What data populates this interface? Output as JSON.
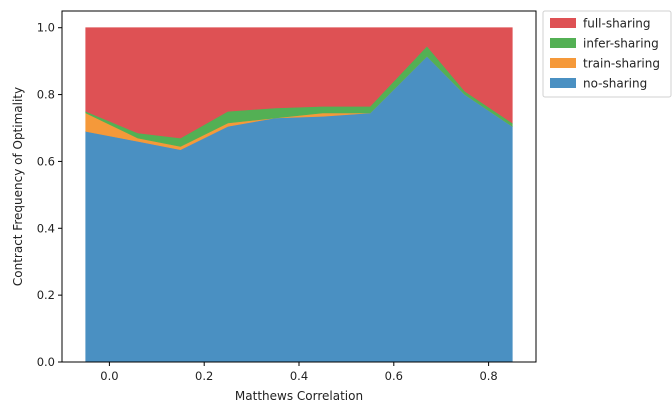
{
  "chart_data": {
    "type": "area",
    "stacked": true,
    "title": "",
    "xlabel": "Matthews Correlation",
    "ylabel": "Contract Frequency of Optimality",
    "xlim": [
      -0.1,
      0.9
    ],
    "ylim": [
      0.0,
      1.05
    ],
    "x": [
      -0.05,
      0.06,
      0.15,
      0.25,
      0.35,
      0.45,
      0.55,
      0.67,
      0.75,
      0.85
    ],
    "xticks": [
      0.0,
      0.2,
      0.4,
      0.6,
      0.8
    ],
    "xtick_labels": [
      "0.0",
      "0.2",
      "0.4",
      "0.6",
      "0.8"
    ],
    "yticks": [
      0.0,
      0.2,
      0.4,
      0.6,
      0.8,
      1.0
    ],
    "ytick_labels": [
      "0.0",
      "0.2",
      "0.4",
      "0.6",
      "0.8",
      "1.0"
    ],
    "grid": false,
    "legend_position": "outside-top-right",
    "series": [
      {
        "name": "no-sharing",
        "color": "#4a90c2",
        "values": [
          0.69,
          0.66,
          0.635,
          0.705,
          0.73,
          0.735,
          0.745,
          0.915,
          0.8,
          0.705
        ]
      },
      {
        "name": "train-sharing",
        "color": "#f5993a",
        "values": [
          0.055,
          0.01,
          0.01,
          0.01,
          0.0,
          0.01,
          0.0,
          0.0,
          0.0,
          0.0
        ]
      },
      {
        "name": "infer-sharing",
        "color": "#53b054",
        "values": [
          0.005,
          0.015,
          0.025,
          0.035,
          0.03,
          0.02,
          0.02,
          0.03,
          0.01,
          0.01
        ]
      },
      {
        "name": "full-sharing",
        "color": "#de5154",
        "values": [
          0.25,
          0.315,
          0.33,
          0.25,
          0.24,
          0.235,
          0.235,
          0.055,
          0.19,
          0.285
        ]
      }
    ],
    "legend_order": [
      "full-sharing",
      "infer-sharing",
      "train-sharing",
      "no-sharing"
    ]
  }
}
